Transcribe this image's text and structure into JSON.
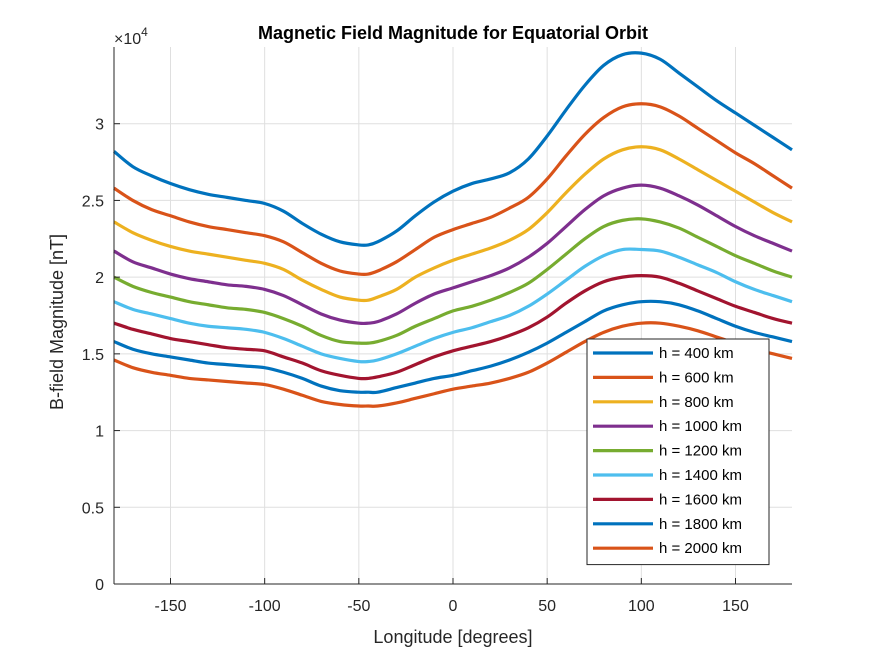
{
  "chart_data": {
    "type": "line",
    "title": "Magnetic Field Magnitude for Equatorial Orbit",
    "xlabel": "Longitude [degrees]",
    "ylabel": "B-field Magnitude [nT]",
    "y_exponent": {
      "base": "×10",
      "power": "4"
    },
    "xlim": [
      -180,
      180
    ],
    "ylim": [
      0,
      35000
    ],
    "x_ticks": [
      -150,
      -100,
      -50,
      0,
      50,
      100,
      150
    ],
    "x_tick_labels": [
      "-150",
      "-100",
      "-50",
      "0",
      "50",
      "100",
      "150"
    ],
    "y_ticks": [
      0,
      5000,
      10000,
      15000,
      20000,
      25000,
      30000
    ],
    "y_tick_labels": [
      "0",
      "0.5",
      "1",
      "1.5",
      "2",
      "2.5",
      "3"
    ],
    "grid": true,
    "legend_position": "bottom-right",
    "x": [
      -180,
      -170,
      -160,
      -150,
      -140,
      -130,
      -120,
      -110,
      -100,
      -90,
      -80,
      -70,
      -60,
      -50,
      -45,
      -40,
      -30,
      -20,
      -10,
      0,
      10,
      20,
      30,
      40,
      50,
      60,
      70,
      80,
      90,
      100,
      110,
      120,
      130,
      140,
      150,
      160,
      170,
      180
    ],
    "series": [
      {
        "name": "h = 400 km",
        "color": "#0072BD",
        "values": [
          28200,
          27200,
          26600,
          26100,
          25700,
          25400,
          25200,
          25000,
          24800,
          24300,
          23500,
          22800,
          22300,
          22100,
          22100,
          22300,
          23000,
          24000,
          24900,
          25600,
          26100,
          26400,
          26800,
          27700,
          29200,
          30900,
          32500,
          33800,
          34500,
          34600,
          34200,
          33300,
          32400,
          31500,
          30700,
          29900,
          29100,
          28300
        ]
      },
      {
        "name": "h = 600 km",
        "color": "#D95319",
        "values": [
          25800,
          25000,
          24400,
          24000,
          23600,
          23300,
          23100,
          22900,
          22700,
          22300,
          21600,
          20900,
          20400,
          20200,
          20200,
          20400,
          21000,
          21800,
          22600,
          23100,
          23500,
          23900,
          24500,
          25200,
          26400,
          27900,
          29300,
          30400,
          31100,
          31300,
          31100,
          30500,
          29700,
          28900,
          28100,
          27400,
          26600,
          25800
        ]
      },
      {
        "name": "h = 800 km",
        "color": "#EDB120",
        "values": [
          23600,
          22900,
          22400,
          22000,
          21700,
          21500,
          21300,
          21100,
          20900,
          20500,
          19800,
          19200,
          18700,
          18500,
          18500,
          18700,
          19200,
          20000,
          20600,
          21100,
          21500,
          21900,
          22400,
          23100,
          24200,
          25500,
          26700,
          27700,
          28300,
          28500,
          28300,
          27700,
          27000,
          26300,
          25600,
          24900,
          24200,
          23600
        ]
      },
      {
        "name": "h = 1000 km",
        "color": "#7E2F8E",
        "values": [
          21700,
          21000,
          20600,
          20200,
          19900,
          19700,
          19500,
          19400,
          19200,
          18800,
          18200,
          17600,
          17200,
          17000,
          17000,
          17100,
          17600,
          18300,
          18900,
          19300,
          19700,
          20100,
          20600,
          21300,
          22200,
          23300,
          24400,
          25300,
          25800,
          26000,
          25800,
          25300,
          24700,
          24000,
          23300,
          22700,
          22200,
          21700
        ]
      },
      {
        "name": "h = 1200 km",
        "color": "#77AC30",
        "values": [
          20000,
          19400,
          19000,
          18700,
          18400,
          18200,
          18000,
          17900,
          17700,
          17300,
          16800,
          16200,
          15800,
          15700,
          15700,
          15800,
          16200,
          16800,
          17300,
          17800,
          18100,
          18500,
          19000,
          19600,
          20500,
          21500,
          22500,
          23300,
          23700,
          23800,
          23600,
          23200,
          22600,
          22000,
          21400,
          20900,
          20400,
          20000
        ]
      },
      {
        "name": "h = 1400 km",
        "color": "#4DBEEE",
        "values": [
          18400,
          17900,
          17600,
          17300,
          17000,
          16800,
          16700,
          16600,
          16400,
          16000,
          15500,
          15000,
          14700,
          14500,
          14500,
          14600,
          15000,
          15500,
          16000,
          16400,
          16700,
          17100,
          17500,
          18100,
          18900,
          19800,
          20700,
          21400,
          21800,
          21800,
          21700,
          21300,
          20800,
          20300,
          19700,
          19200,
          18800,
          18400
        ]
      },
      {
        "name": "h = 1600 km",
        "color": "#A2142F",
        "values": [
          17000,
          16600,
          16300,
          16000,
          15800,
          15600,
          15400,
          15300,
          15200,
          14800,
          14400,
          13900,
          13600,
          13400,
          13400,
          13500,
          13800,
          14300,
          14800,
          15200,
          15500,
          15800,
          16200,
          16700,
          17400,
          18300,
          19100,
          19700,
          20000,
          20100,
          20000,
          19600,
          19100,
          18600,
          18100,
          17700,
          17300,
          17000
        ]
      },
      {
        "name": "h = 1800 km",
        "color": "#0072BD",
        "values": [
          15800,
          15300,
          15000,
          14800,
          14600,
          14400,
          14300,
          14200,
          14100,
          13800,
          13400,
          12900,
          12600,
          12500,
          12500,
          12500,
          12800,
          13100,
          13400,
          13600,
          13900,
          14200,
          14600,
          15100,
          15700,
          16400,
          17100,
          17800,
          18200,
          18400,
          18400,
          18200,
          17800,
          17300,
          16800,
          16400,
          16100,
          15800
        ]
      },
      {
        "name": "h = 2000 km",
        "color": "#D95319",
        "values": [
          14600,
          14100,
          13800,
          13600,
          13400,
          13300,
          13200,
          13100,
          13000,
          12700,
          12300,
          11900,
          11700,
          11600,
          11600,
          11600,
          11800,
          12100,
          12400,
          12700,
          12900,
          13100,
          13400,
          13800,
          14400,
          15100,
          15800,
          16400,
          16800,
          17000,
          17000,
          16800,
          16500,
          16100,
          15700,
          15300,
          15000,
          14700
        ]
      }
    ]
  }
}
